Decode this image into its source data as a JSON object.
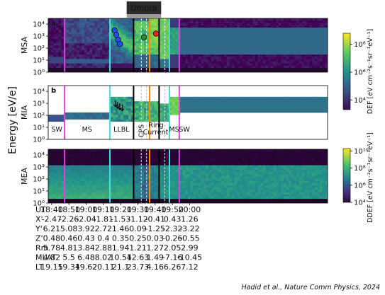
{
  "credit": "Hadid et al., Nature Comm Physics, 2024",
  "chart_data": {
    "type": "heatmap",
    "layout": "three stacked energy-time spectrogram panels sharing a time axis",
    "shared_ylabel": "Energy [eV/e]",
    "time_axis": {
      "row_label": "UT",
      "range_minutes": [
        1838,
        2000
      ],
      "ticks": [
        {
          "label": "18:40",
          "min": 1840
        },
        {
          "label": "18:50",
          "min": 1850
        },
        {
          "label": "19:00",
          "min": 1860
        },
        {
          "label": "19:10",
          "min": 1870
        },
        {
          "label": "19:20",
          "min": 1880
        },
        {
          "label": "19:30",
          "min": 1890
        },
        {
          "label": "19:40",
          "min": 1900
        },
        {
          "label": "19:50",
          "min": 1910
        },
        {
          "label": "20:00",
          "min": 1920
        }
      ]
    },
    "ephemeris": [
      {
        "label": "X'",
        "values": [
          "-2.47",
          "-2.26",
          "-2.04",
          "-1.81",
          "-1.53",
          "-1.12",
          "-0.41",
          "0.43",
          "1.26"
        ]
      },
      {
        "label": "Y'",
        "values": [
          "6.21",
          "5.08",
          "3.92",
          "2.72",
          "1.46",
          "0.09",
          "-1.25",
          "-2.32",
          "-3.22"
        ]
      },
      {
        "label": "Z'",
        "values": [
          "0.48",
          "0.46",
          "0.43",
          "0.4",
          "0.35",
          "0.25",
          "0.03",
          "-0.26",
          "-0.55"
        ]
      },
      {
        "label": "Rm",
        "values": [
          "5.78",
          "4.81",
          "3.84",
          "2.88",
          "1.94",
          "1.21",
          "1.27",
          "2.05",
          "2.99"
        ]
      },
      {
        "label": "MLAT",
        "values": [
          "4.82",
          "5.5",
          "6.48",
          "8.02",
          "10.54",
          "12.63",
          "1.49",
          "-7.16",
          "-10.45"
        ]
      },
      {
        "label": "LT",
        "values": [
          "19.15",
          "19.34",
          "19.62",
          "20.11",
          "21.1",
          "23.73",
          "4.16",
          "6.26",
          "7.12"
        ]
      }
    ],
    "umbra": {
      "label": "Umbra",
      "start_min": 1883.5,
      "end_min": 1903.5
    },
    "vertical_lines": [
      {
        "min": 1847.5,
        "color": "#e040e0"
      },
      {
        "min": 1873.8,
        "color": "#40e0e0"
      },
      {
        "min": 1887.5,
        "color": "#000000"
      },
      {
        "min": 1896.8,
        "color": "#ff8800"
      },
      {
        "min": 1902.3,
        "color": "#000000"
      },
      {
        "min": 1908.3,
        "color": "#40e0e0"
      },
      {
        "min": 1914.0,
        "color": "#e040e0"
      }
    ],
    "dashed_lines_min": [
      1892.0,
      1895.0,
      1905.6
    ],
    "panels": [
      {
        "id": "a",
        "ylabel": "MSA",
        "yscale": "log",
        "ylim": [
          1,
          30000
        ],
        "yticks": [
          "10⁰",
          "10¹",
          "10²",
          "10³",
          "10⁴"
        ],
        "markers": [
          {
            "min": 1876.5,
            "energy": 3000,
            "color": "#1f4fff"
          },
          {
            "min": 1877.5,
            "energy": 1300,
            "color": "#1f4fff"
          },
          {
            "min": 1878.5,
            "energy": 500,
            "color": "#1f4fff"
          },
          {
            "min": 1879.5,
            "energy": 220,
            "color": "#1f4fff"
          },
          {
            "min": 1893.5,
            "energy": 800,
            "color": "#2e8b2e"
          },
          {
            "min": 1900.5,
            "energy": 1600,
            "color": "#ff2020"
          }
        ]
      },
      {
        "id": "b",
        "ylabel": "MIA",
        "yscale": "log",
        "ylim": [
          1,
          30000
        ],
        "yticks": [
          "10⁰",
          "10¹",
          "10²",
          "10³",
          "10⁴"
        ],
        "regions": [
          {
            "label": "SW",
            "min": 1843.0
          },
          {
            "label": "MS",
            "min": 1860.5
          },
          {
            "label": "LLBL",
            "min": 1880.5
          },
          {
            "label": "CPS",
            "min": 1893.3,
            "rotated": true
          },
          {
            "label": "Ring",
            "min": 1900.5
          },
          {
            "label": "Current",
            "min": 1900.3
          },
          {
            "label": "MS",
            "min": 1911.0
          },
          {
            "label": "SW",
            "min": 1917.0
          }
        ],
        "arrows": [
          {
            "min": 1877.0,
            "energy": 800
          },
          {
            "min": 1878.2,
            "energy": 600
          },
          {
            "min": 1879.5,
            "energy": 450
          },
          {
            "min": 1881.0,
            "energy": 350
          }
        ]
      },
      {
        "id": "c",
        "ylabel": "MEA",
        "yscale": "log",
        "ylim": [
          1,
          30000
        ],
        "yticks": [
          "10⁰",
          "10¹",
          "10²",
          "10³",
          "10⁴"
        ]
      }
    ],
    "colorbars": [
      {
        "panel": "a+b",
        "label": "DEF [eV cm⁻²s⁻¹sr⁻¹eV⁻¹]",
        "scale": "log",
        "ticks": [
          "10⁴",
          "10⁶",
          "10⁸"
        ]
      },
      {
        "panel": "c",
        "label": "DDEF [eV cm⁻²s⁻¹sr⁻¹eV⁻¹]",
        "scale": "log",
        "ticks": [
          "10⁴",
          "10⁶",
          "10⁸",
          "10¹⁰"
        ]
      }
    ]
  }
}
